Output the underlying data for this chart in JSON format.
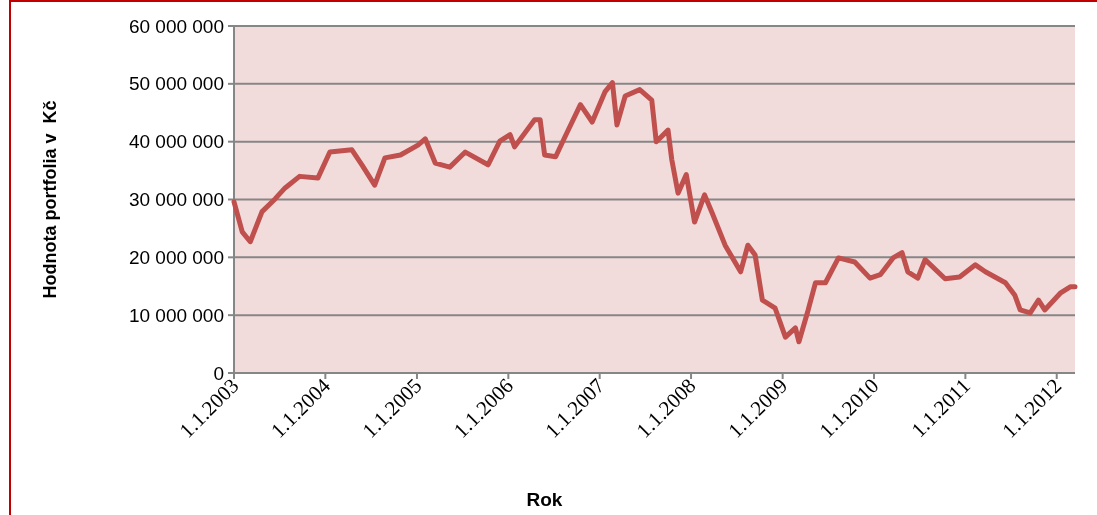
{
  "chart_data": {
    "type": "line",
    "xlabel": "Rok",
    "ylabel": "Hodnota portfolia v  Kč",
    "grid": "y",
    "line_style": "solid",
    "xlim": [
      "2003-01-01",
      "2012-03-14"
    ],
    "xticks": [
      {
        "value": "2003-01-01",
        "label": "1.1.2003"
      },
      {
        "value": "2004-01-01",
        "label": "1.1.2004"
      },
      {
        "value": "2005-01-01",
        "label": "1.1.2005"
      },
      {
        "value": "2006-01-01",
        "label": "1.1.2006"
      },
      {
        "value": "2007-01-01",
        "label": "1.1.2007"
      },
      {
        "value": "2008-01-01",
        "label": "1.1.2008"
      },
      {
        "value": "2009-01-01",
        "label": "1.1.2009"
      },
      {
        "value": "2010-01-01",
        "label": "1.1.2010"
      },
      {
        "value": "2011-01-01",
        "label": "1.1.2011"
      },
      {
        "value": "2012-01-01",
        "label": "1.1.2012"
      }
    ],
    "ylim": [
      0,
      60000000
    ],
    "yticks": [
      0,
      {
        "value": 10000000,
        "label": "10 000 000"
      },
      {
        "value": 20000000,
        "label": "20 000 000"
      },
      {
        "value": 30000000,
        "label": "30 000 000"
      },
      {
        "value": 40000000,
        "label": "40 000 000"
      },
      {
        "value": 50000000,
        "label": "50 000 000"
      },
      {
        "value": 60000000,
        "label": "60 000 000"
      }
    ],
    "x": [
      "2003-01-01",
      "2003-02-03",
      "2003-03-07",
      "2003-04-23",
      "2003-06-14",
      "2003-07-24",
      "2003-09-20",
      "2003-12-02",
      "2004-01-19",
      "2004-04-16",
      "2004-05-26",
      "2004-07-16",
      "2004-08-26",
      "2004-10-27",
      "2005-01-05",
      "2005-02-03",
      "2005-03-15",
      "2005-05-12",
      "2005-07-13",
      "2005-10-12",
      "2005-11-28",
      "2006-01-08",
      "2006-01-26",
      "2006-04-16",
      "2006-05-08",
      "2006-05-26",
      "2006-07-09",
      "2006-08-15",
      "2006-10-16",
      "2006-12-02",
      "2007-01-22",
      "2007-02-21",
      "2007-03-11",
      "2007-04-13",
      "2007-06-10",
      "2007-07-28",
      "2007-08-15",
      "2007-10-01",
      "2007-10-16",
      "2007-11-10",
      "2007-12-13",
      "2008-01-15",
      "2008-02-24",
      "2008-03-25",
      "2008-05-16",
      "2008-07-17",
      "2008-08-15",
      "2008-09-13",
      "2008-10-12",
      "2008-12-02",
      "2009-01-12",
      "2009-02-21",
      "2009-03-07",
      "2009-04-13",
      "2009-05-12",
      "2009-06-21",
      "2009-08-12",
      "2009-10-16",
      "2009-12-16",
      "2010-01-26",
      "2010-03-18",
      "2010-04-23",
      "2010-05-16",
      "2010-06-25",
      "2010-07-24",
      "2010-10-12",
      "2010-12-09",
      "2011-02-10",
      "2011-03-22",
      "2011-06-10",
      "2011-07-17",
      "2011-08-08",
      "2011-09-17",
      "2011-10-20",
      "2011-11-14",
      "2012-01-15",
      "2012-02-24",
      "2012-03-14"
    ],
    "series": [
      {
        "color": "#c0504d",
        "values": [
          29600000,
          24400000,
          22700000,
          27900000,
          30100000,
          32000000,
          34000000,
          33700000,
          38200000,
          38600000,
          36000000,
          32500000,
          37200000,
          37700000,
          39400000,
          40500000,
          36300000,
          35600000,
          38200000,
          36000000,
          40100000,
          41200000,
          39100000,
          43800000,
          43800000,
          37700000,
          37400000,
          40800000,
          46400000,
          43400000,
          48600000,
          50200000,
          42900000,
          47900000,
          49000000,
          47200000,
          40000000,
          42000000,
          36900000,
          31100000,
          34300000,
          26100000,
          30800000,
          27700000,
          22100000,
          17500000,
          22100000,
          20400000,
          12600000,
          11200000,
          6200000,
          7800000,
          5400000,
          10900000,
          15600000,
          15600000,
          19900000,
          19200000,
          16400000,
          17000000,
          19900000,
          20800000,
          17500000,
          16400000,
          19600000,
          16300000,
          16600000,
          18700000,
          17500000,
          15600000,
          13500000,
          10900000,
          10400000,
          12600000,
          10900000,
          13800000,
          14900000,
          14900000
        ]
      }
    ]
  }
}
